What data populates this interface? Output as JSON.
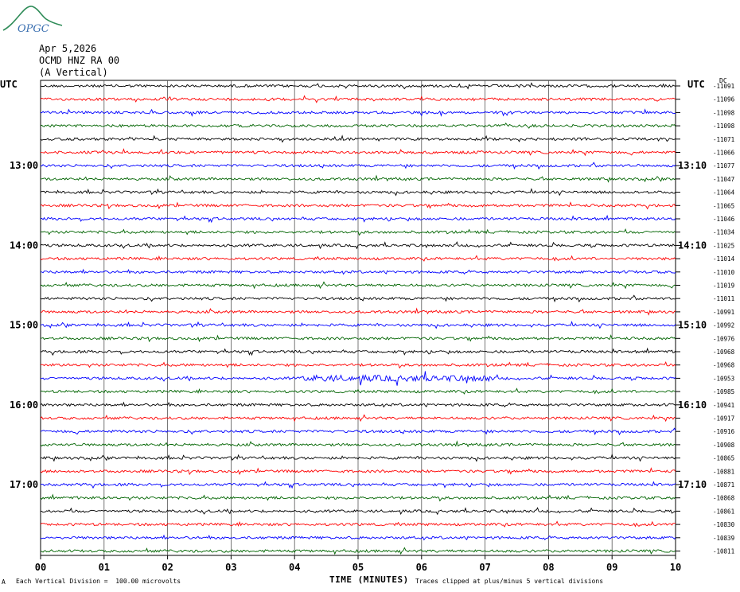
{
  "logo": {
    "text": "OPGC",
    "icon": "mountain-logo-icon",
    "color": "#2e8b57"
  },
  "header": {
    "date": "Apr 5,2026",
    "station": "OCMD HNZ RA 00",
    "component": "(A Vertical)",
    "utc_left": "UTC",
    "utc_right": "UTC",
    "dc_label": "DC"
  },
  "footer": {
    "scale_note": "Each Vertical Division =  100.00 microvolts",
    "clip_note": "Traces clipped at plus/minus 5 vertical divisions",
    "corner_mark": "A"
  },
  "chart_data": {
    "type": "line",
    "title": "",
    "xlabel": "TIME (MINUTES)",
    "ylabel": "",
    "xlim": [
      0,
      10
    ],
    "x_ticks": [
      "00",
      "01",
      "02",
      "03",
      "04",
      "05",
      "06",
      "07",
      "08",
      "09",
      "10"
    ],
    "grid": "vertical lines at each minute",
    "trace_colors": [
      "#000000",
      "#ff0000",
      "#0000ff",
      "#006400"
    ],
    "rows": 36,
    "left_hour_labels": [
      "13:00",
      "14:00",
      "15:00",
      "16:00",
      "17:00"
    ],
    "right_hour_labels": [
      "13:10",
      "14:10",
      "15:10",
      "16:10",
      "17:10"
    ],
    "hour_label_rows": [
      6,
      12,
      18,
      24,
      30
    ],
    "dc_offsets": [
      "-11091",
      "-11096",
      "-11098",
      "-11098",
      "-11071",
      "-11066",
      "-11077",
      "-11047",
      "-11064",
      "-11065",
      "-11046",
      "-11034",
      "-11025",
      "-11014",
      "-11010",
      "-11019",
      "-11011",
      "-10991",
      "-10992",
      "-10976",
      "-10968",
      "-10968",
      "-10953",
      "-10985",
      "-10941",
      "-10917",
      "-10916",
      "-10908",
      "-10865",
      "-10881",
      "-10871",
      "-10868",
      "-10861",
      "-10830",
      "-10839",
      "-10811"
    ]
  }
}
